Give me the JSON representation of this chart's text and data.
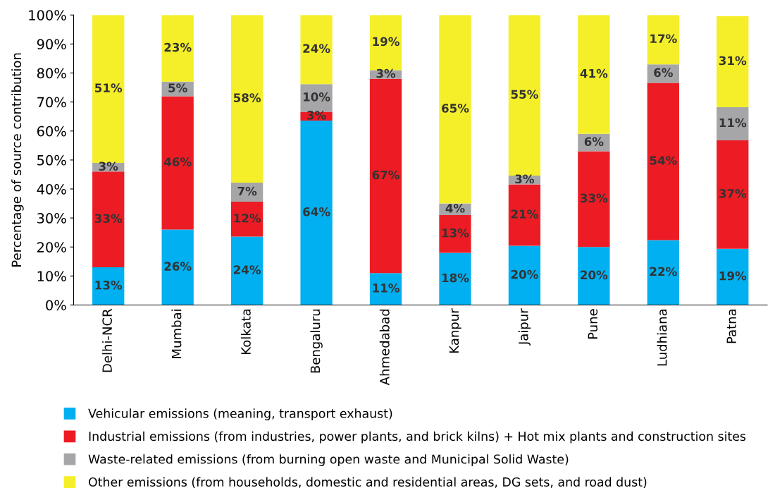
{
  "chart_data": {
    "type": "bar",
    "stacked": true,
    "ylabel": "Percentage of source contribution",
    "categories": [
      "Delhi-NCR",
      "Mumbai",
      "Kolkata",
      "Bengaluru",
      "Ahmedabad",
      "Kanpur",
      "Jaipur",
      "Pune",
      "Ludhiana",
      "Patna"
    ],
    "series": [
      {
        "name": "Vehicular emissions (meaning, transport exhaust)",
        "color": "#00b0f0",
        "values": [
          13,
          26,
          23.6,
          63.6,
          11,
          18,
          20.4,
          20,
          22.4,
          19.4
        ],
        "value_labels": [
          "13%",
          "26%",
          "24%",
          "64%",
          "11%",
          "18%",
          "20%",
          "20%",
          "22%",
          "19%"
        ]
      },
      {
        "name": "Industrial emissions (from industries, power plants, and brick kilns) + Hot mix plants and construction sites",
        "color": "#ed1c24",
        "values": [
          33,
          46,
          12,
          3,
          67,
          13,
          21.2,
          33,
          54.2,
          37.4
        ],
        "value_labels": [
          "33%",
          "46%",
          "12%",
          "3%",
          "67%",
          "13%",
          "21%",
          "33%",
          "54%",
          "37%"
        ]
      },
      {
        "name": "Waste-related emissions (from burning open waste and Municipal Solid Waste)",
        "color": "#a6a6a9",
        "values": [
          3,
          5,
          6.6,
          9.6,
          3,
          4,
          3,
          6,
          6.4,
          11.4
        ],
        "value_labels": [
          "3%",
          "5%",
          "7%",
          "10%",
          "3%",
          "4%",
          "3%",
          "6%",
          "6%",
          "11%"
        ]
      },
      {
        "name": "Other emissions (from households, domestic and residential areas, DG sets, and road dust)",
        "color": "#f5ef2a",
        "values": [
          51,
          23,
          57.8,
          23.8,
          19,
          65,
          55.4,
          41,
          17,
          31.4
        ],
        "value_labels": [
          "51%",
          "23%",
          "58%",
          "24%",
          "19%",
          "65%",
          "55%",
          "41%",
          "17%",
          "31%"
        ]
      }
    ],
    "ylim": [
      0,
      100
    ],
    "yticks": [
      {
        "value": 0,
        "label": "0%"
      },
      {
        "value": 10,
        "label": "10%"
      },
      {
        "value": 20,
        "label": "20%"
      },
      {
        "value": 30,
        "label": "30%"
      },
      {
        "value": 40,
        "label": "40%"
      },
      {
        "value": 50,
        "label": "50%"
      },
      {
        "value": 60,
        "label": "60%"
      },
      {
        "value": 70,
        "label": "70%"
      },
      {
        "value": 80,
        "label": "80%"
      },
      {
        "value": 90,
        "label": "90%"
      },
      {
        "value": 100,
        "label": "100%"
      }
    ],
    "legend": "bottom",
    "marker": "square"
  }
}
